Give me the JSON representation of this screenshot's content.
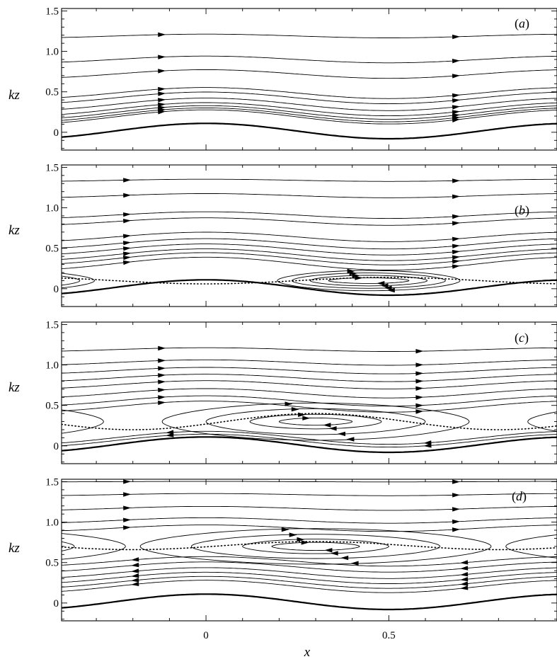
{
  "figure": {
    "x_axis": {
      "label": "x",
      "ticks": [
        {
          "value": 0,
          "label": "0"
        },
        {
          "value": 0.5,
          "label": "0.5"
        }
      ],
      "range": [
        -0.395,
        0.96
      ]
    },
    "y_axis": {
      "label": "kz",
      "ticks": [
        {
          "value": 0,
          "label": "0"
        },
        {
          "value": 0.5,
          "label": "0.5"
        },
        {
          "value": 1.0,
          "label": "1.0"
        },
        {
          "value": 1.5,
          "label": "1.5"
        }
      ],
      "range": [
        -0.22,
        1.53
      ]
    },
    "bottom_wall": {
      "mean": 0.015,
      "amplitude": 0.095,
      "description": "kz = 0.015 + 0.095 cos(2*pi*x)"
    },
    "panels": [
      {
        "tag": "a",
        "streamlines_up": [
          1.19,
          0.9,
          0.72,
          0.485,
          0.425,
          0.345,
          0.285,
          0.245,
          0.215,
          0.19
        ],
        "arrow_x": [
          -0.11,
          0.695
        ],
        "streamlines_reversed": [],
        "critical_layer": null,
        "cat_eyes": []
      },
      {
        "tag": "b",
        "streamlines_up": [
          1.34,
          1.15,
          0.91,
          0.83,
          0.64,
          0.555,
          0.485,
          0.42,
          0.37,
          0.31
        ],
        "arrow_x": [
          -0.205,
          0.695
        ],
        "streamlines_reversed": [],
        "critical_layer": {
          "center": 0.1,
          "amplitude": 0.04,
          "phase": 0.5
        },
        "cat_eyes": [
          {
            "cx": 0.445,
            "cz": 0.1,
            "half_widths": [
              0.25,
              0.21,
              0.16,
              0.11
            ],
            "half_heights": [
              0.125,
              0.095,
              0.065,
              0.035
            ],
            "direction": "clockwise"
          }
        ]
      },
      {
        "tag": "c",
        "streamlines_up": [
          1.19,
          1.03,
          0.93,
          0.84,
          0.755,
          0.65,
          0.555,
          0.485
        ],
        "arrow_x": [
          -0.11,
          0.595
        ],
        "streamlines_reversed": [
          0.1,
          0.065
        ],
        "critical_layer": {
          "center": 0.3,
          "amplitude": 0.1,
          "phase": 0.3
        },
        "cat_eyes": [
          {
            "cx": 0.3,
            "cz": 0.3,
            "half_widths": [
              0.42,
              0.3,
              0.18,
              0.1
            ],
            "half_heights": [
              0.23,
              0.16,
              0.09,
              0.045
            ],
            "direction": "clockwise"
          }
        ]
      },
      {
        "tag": "d",
        "streamlines_up": [
          1.5,
          1.34,
          1.17,
          1.02,
          0.925
        ],
        "arrow_x": [
          -0.205,
          0.695
        ],
        "streamlines_reversed": [
          0.515,
          0.445,
          0.37,
          0.31,
          0.255,
          0.205
        ],
        "critical_layer": {
          "center": 0.71,
          "amplitude": 0.05,
          "phase": 0.3
        },
        "cat_eyes": [
          {
            "cx": 0.3,
            "cz": 0.7,
            "half_widths": [
              0.48,
              0.34,
              0.2,
              0.12
            ],
            "half_heights": [
              0.22,
              0.15,
              0.09,
              0.05
            ],
            "direction": "clockwise"
          }
        ]
      }
    ]
  }
}
